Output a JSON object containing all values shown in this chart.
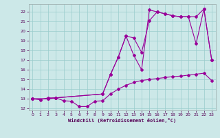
{
  "xlabel": "Windchill (Refroidissement éolien,°C)",
  "background_color": "#cce8e8",
  "grid_color": "#99cccc",
  "line_color": "#990099",
  "xlim": [
    -0.5,
    23.5
  ],
  "ylim": [
    11.8,
    22.8
  ],
  "yticks": [
    12,
    13,
    14,
    15,
    16,
    17,
    18,
    19,
    20,
    21,
    22
  ],
  "xticks": [
    0,
    1,
    2,
    3,
    4,
    5,
    6,
    7,
    8,
    9,
    10,
    11,
    12,
    13,
    14,
    15,
    16,
    17,
    18,
    19,
    20,
    21,
    22,
    23
  ],
  "line1_x": [
    0,
    1,
    2,
    3,
    4,
    5,
    6,
    7,
    8,
    9,
    10,
    11,
    12,
    13,
    14,
    15,
    16,
    17,
    18,
    19,
    20,
    21,
    22,
    23
  ],
  "line1_y": [
    13.0,
    12.9,
    13.1,
    13.1,
    12.8,
    12.75,
    12.2,
    12.2,
    12.75,
    12.8,
    13.5,
    14.0,
    14.4,
    14.7,
    14.9,
    15.0,
    15.1,
    15.2,
    15.3,
    15.35,
    15.45,
    15.55,
    15.65,
    14.9
  ],
  "line2_x": [
    0,
    2,
    3,
    9,
    10,
    11,
    12,
    13,
    14,
    15,
    16,
    17,
    18,
    19,
    20,
    21,
    22,
    23
  ],
  "line2_y": [
    13.0,
    13.0,
    13.1,
    13.5,
    15.5,
    17.3,
    19.5,
    17.5,
    16.0,
    22.2,
    22.0,
    21.8,
    21.6,
    21.5,
    21.5,
    21.5,
    22.3,
    17.0
  ],
  "line3_x": [
    0,
    2,
    3,
    9,
    10,
    11,
    12,
    13,
    14,
    15,
    16,
    17,
    18,
    19,
    20,
    21,
    22,
    23
  ],
  "line3_y": [
    13.0,
    13.0,
    13.1,
    13.5,
    15.5,
    17.3,
    19.5,
    19.3,
    17.8,
    21.1,
    22.0,
    21.8,
    21.6,
    21.5,
    21.5,
    18.7,
    22.3,
    17.0
  ]
}
